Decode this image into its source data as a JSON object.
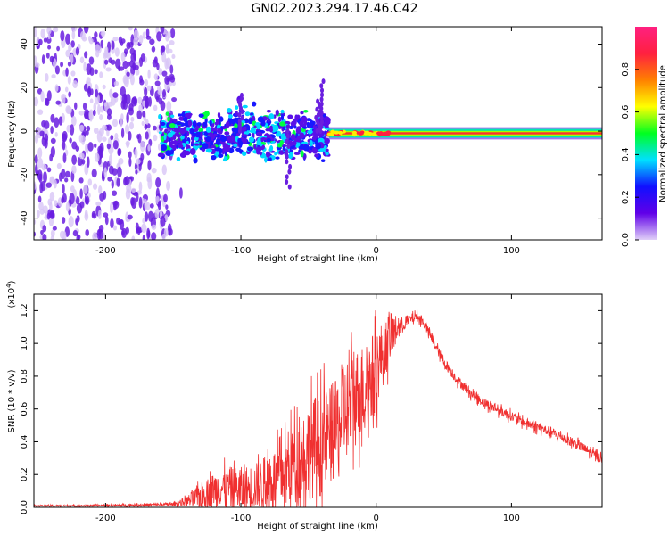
{
  "title": "GN02.2023.294.17.46.C42",
  "chart_data": [
    {
      "type": "heatmap",
      "title": "GN02.2023.294.17.46.C42",
      "xlabel": "Height of straight line (km)",
      "ylabel": "Frequency (Hz)",
      "xlim": [
        -253,
        167
      ],
      "ylim": [
        -50,
        48
      ],
      "xticks": [
        -200,
        -100,
        0,
        100
      ],
      "yticks": [
        -40,
        -20,
        0,
        20,
        40
      ],
      "grid": false,
      "colorbar": {
        "label": "Normalized spectral amplitude",
        "range": [
          0,
          1
        ],
        "ticks": [
          "0.0",
          "0.2",
          "0.4",
          "0.6",
          "0.8"
        ],
        "colormap": [
          "#e0d0f8",
          "#6000e8",
          "#1010ff",
          "#00e0ff",
          "#00ff20",
          "#ffff00",
          "#ff8000",
          "#ff2040",
          "#ff2080"
        ]
      },
      "regions": [
        {
          "x_range": [
            -253,
            -150
          ],
          "freq_range": [
            -50,
            48
          ],
          "amplitude": "low",
          "color": "#6a1fe0"
        },
        {
          "x_range": [
            -160,
            -35
          ],
          "freq_range": [
            -15,
            10
          ],
          "amplitude": "medium",
          "color": "#00d8ff"
        },
        {
          "x_range": [
            -35,
            167
          ],
          "freq_center": -1,
          "freq_width": 4,
          "amplitude": "high",
          "color": "#ff3030"
        }
      ]
    },
    {
      "type": "line",
      "xlabel": "Height of straight line (km)",
      "ylabel": "SNR (10 * v/v)",
      "multiplier_label": "(x10",
      "multiplier_exp": "4",
      "xlim": [
        -253,
        167
      ],
      "ylim": [
        0,
        1.3
      ],
      "xticks": [
        -200,
        -100,
        0,
        100
      ],
      "yticks": [
        "0.0",
        "0.2",
        "0.4",
        "0.6",
        "0.8",
        "1.0",
        "1.2"
      ],
      "grid": false,
      "series": [
        {
          "color": "#f03030",
          "x": [
            -253,
            -220,
            -180,
            -150,
            -140,
            -130,
            -120,
            -110,
            -100,
            -90,
            -80,
            -70,
            -60,
            -50,
            -40,
            -30,
            -25,
            -20,
            -15,
            -10,
            -5,
            0,
            5,
            10,
            15,
            20,
            25,
            30,
            35,
            40,
            45,
            50,
            60,
            70,
            80,
            90,
            100,
            110,
            120,
            130,
            140,
            150,
            160,
            167
          ],
          "y": [
            0.01,
            0.01,
            0.015,
            0.02,
            0.04,
            0.08,
            0.12,
            0.14,
            0.12,
            0.14,
            0.18,
            0.22,
            0.3,
            0.38,
            0.42,
            0.5,
            0.58,
            0.66,
            0.7,
            0.75,
            0.8,
            0.88,
            0.96,
            1.05,
            1.1,
            1.12,
            1.15,
            1.17,
            1.13,
            1.05,
            0.97,
            0.89,
            0.78,
            0.7,
            0.64,
            0.6,
            0.56,
            0.52,
            0.49,
            0.46,
            0.42,
            0.38,
            0.33,
            0.3
          ],
          "noise_amplitude": [
            0.005,
            0.005,
            0.008,
            0.01,
            0.03,
            0.08,
            0.1,
            0.12,
            0.14,
            0.14,
            0.16,
            0.2,
            0.25,
            0.3,
            0.32,
            0.3,
            0.3,
            0.32,
            0.3,
            0.28,
            0.26,
            0.24,
            0.2,
            0.15,
            0.08,
            0.04,
            0.03,
            0.03,
            0.03,
            0.03,
            0.03,
            0.03,
            0.03,
            0.03,
            0.03,
            0.03,
            0.03,
            0.03,
            0.03,
            0.03,
            0.03,
            0.03,
            0.03,
            0.03
          ]
        }
      ]
    }
  ]
}
